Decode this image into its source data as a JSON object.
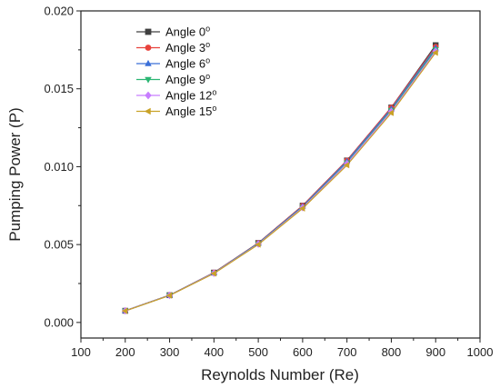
{
  "chart_data": {
    "type": "line",
    "title": "",
    "xlabel": "Reynolds Number (Re)",
    "ylabel": "Pumping Power (P)",
    "xlim": [
      100,
      1000
    ],
    "ylim": [
      -0.001,
      0.02
    ],
    "x_ticks": [
      100,
      200,
      300,
      400,
      500,
      600,
      700,
      800,
      900,
      1000
    ],
    "x_tick_labels": [
      "100",
      "200",
      "300",
      "400",
      "500",
      "600",
      "700",
      "800",
      "900",
      "1000"
    ],
    "y_ticks": [
      0.0,
      0.005,
      0.01,
      0.015,
      0.02
    ],
    "y_tick_labels": [
      "0.000",
      "0.005",
      "0.010",
      "0.015",
      "0.020"
    ],
    "grid": false,
    "legend_position": "top-left",
    "x": [
      200,
      300,
      400,
      500,
      600,
      700,
      800,
      900
    ],
    "series": [
      {
        "name": "Angle 0",
        "sup": "o",
        "color": "#404040",
        "marker": "square",
        "values": [
          0.00075,
          0.00175,
          0.0032,
          0.0051,
          0.0075,
          0.0104,
          0.0138,
          0.0178
        ]
      },
      {
        "name": "Angle 3",
        "sup": "o",
        "color": "#e8423c",
        "marker": "circle",
        "values": [
          0.00075,
          0.00175,
          0.0032,
          0.0051,
          0.0075,
          0.0104,
          0.0138,
          0.0177
        ]
      },
      {
        "name": "Angle 6",
        "sup": "o",
        "color": "#3a6fd8",
        "marker": "triangle-up",
        "values": [
          0.00075,
          0.00175,
          0.00318,
          0.00508,
          0.00745,
          0.01035,
          0.01372,
          0.01762
        ]
      },
      {
        "name": "Angle 9",
        "sup": "o",
        "color": "#2bb673",
        "marker": "triangle-down",
        "values": [
          0.00075,
          0.00174,
          0.00317,
          0.00505,
          0.0074,
          0.01025,
          0.01362,
          0.01752
        ]
      },
      {
        "name": "Angle 12",
        "sup": "o",
        "color": "#c77dff",
        "marker": "diamond",
        "values": [
          0.00075,
          0.00174,
          0.00316,
          0.00503,
          0.00737,
          0.0102,
          0.01355,
          0.01742
        ]
      },
      {
        "name": "Angle 15",
        "sup": "o",
        "color": "#c9a227",
        "marker": "triangle-left",
        "values": [
          0.00074,
          0.00173,
          0.00314,
          0.005,
          0.00732,
          0.0101,
          0.01345,
          0.01732
        ]
      }
    ]
  }
}
